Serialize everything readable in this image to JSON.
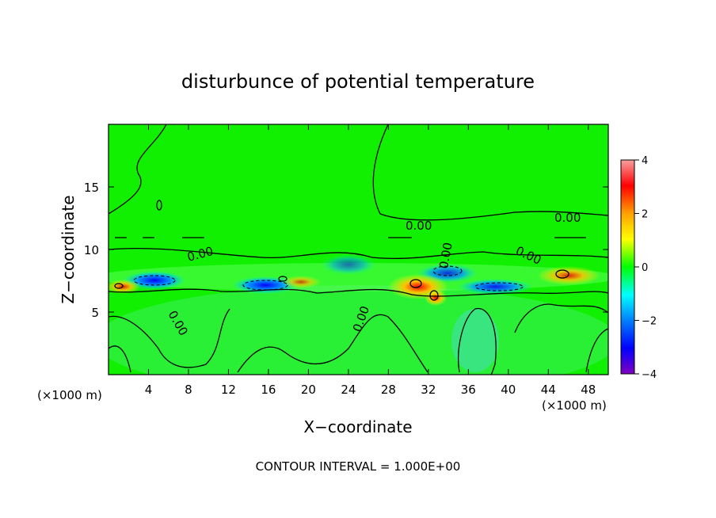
{
  "chart_data": {
    "type": "heatmap",
    "title": "disturbunce of potential temperature",
    "xlabel": "X−coordinate",
    "ylabel": "Z−coordinate",
    "x_unit_label": "(×1000 m)",
    "x_unit_label_right": "(×1000 m)",
    "xlim": [
      0,
      50
    ],
    "ylim": [
      0,
      20
    ],
    "x_ticks": [
      "4",
      "8",
      "12",
      "16",
      "20",
      "24",
      "28",
      "32",
      "36",
      "40",
      "44",
      "48"
    ],
    "y_ticks": [
      "5",
      "10",
      "15"
    ],
    "colorbar": {
      "range": [
        -4,
        4
      ],
      "ticks": [
        "4",
        "2",
        "0",
        "−2",
        "−4"
      ],
      "stops": [
        {
          "v": 4,
          "color": "#f8a0a0"
        },
        {
          "v": 3,
          "color": "#ff0000"
        },
        {
          "v": 2,
          "color": "#ffa000"
        },
        {
          "v": 1,
          "color": "#ffff00"
        },
        {
          "v": 0,
          "color": "#00ff00"
        },
        {
          "v": -1,
          "color": "#00ffff"
        },
        {
          "v": -2,
          "color": "#0080ff"
        },
        {
          "v": -3,
          "color": "#0000ff"
        },
        {
          "v": -4,
          "color": "#8000c0"
        }
      ]
    },
    "background_value": 0,
    "features": [
      {
        "x": 5,
        "z": 7.6,
        "value": -2.3
      },
      {
        "x": 15,
        "z": 7.2,
        "value": -2.6
      },
      {
        "x": 33,
        "z": 8.2,
        "value": -1.5
      },
      {
        "x": 37.5,
        "z": 7.1,
        "value": -1.8
      },
      {
        "x": 23,
        "z": 9.3,
        "value": -1.0
      },
      {
        "x": 30.5,
        "z": 7.2,
        "value": 2.8
      },
      {
        "x": 32.5,
        "z": 6.3,
        "value": 2.5
      },
      {
        "x": 46,
        "z": 7.8,
        "value": 1.3
      },
      {
        "x": 1.5,
        "z": 7.0,
        "value": 2.2
      },
      {
        "x": 19,
        "z": 7.3,
        "value": 1.0
      },
      {
        "x": 34.5,
        "z": 3.0,
        "value": -0.5
      }
    ],
    "contour_labels": [
      "0.00",
      "0.00",
      "0.00",
      "0.00",
      "0.00",
      "0.00",
      "0.00"
    ],
    "contour_interval_text": "CONTOUR INTERVAL = 1.000E+00"
  }
}
